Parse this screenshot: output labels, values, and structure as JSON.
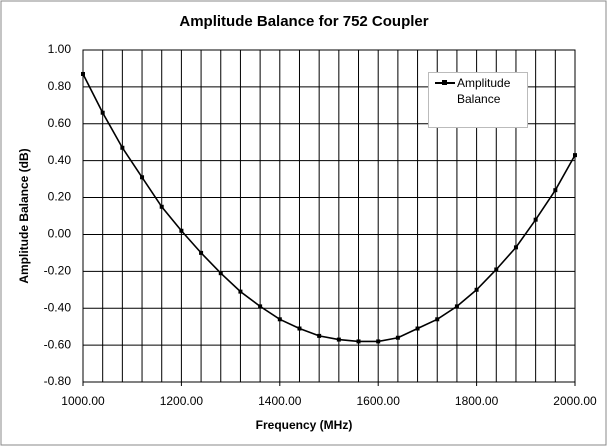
{
  "chart_data": {
    "type": "line",
    "title": "Amplitude Balance for 752 Coupler",
    "xlabel": "Frequency (MHz)",
    "ylabel": "Amplitude Balance (dB)",
    "x": [
      1000,
      1040,
      1080,
      1120,
      1160,
      1200,
      1240,
      1280,
      1320,
      1360,
      1400,
      1440,
      1480,
      1520,
      1560,
      1600,
      1640,
      1680,
      1720,
      1760,
      1800,
      1840,
      1880,
      1920,
      1960,
      2000
    ],
    "series": [
      {
        "name": "Amplitude Balance",
        "color": "#000000",
        "values": [
          0.87,
          0.66,
          0.47,
          0.31,
          0.15,
          0.02,
          -0.1,
          -0.21,
          -0.31,
          -0.39,
          -0.46,
          -0.51,
          -0.55,
          -0.57,
          -0.58,
          -0.58,
          -0.56,
          -0.51,
          -0.46,
          -0.39,
          -0.3,
          -0.19,
          -0.07,
          0.08,
          0.24,
          0.43
        ]
      }
    ],
    "xlim": [
      1000,
      2000
    ],
    "xticks": [
      {
        "value": 1000,
        "label": "1000.00"
      },
      {
        "value": 1200,
        "label": "1200.00"
      },
      {
        "value": 1400,
        "label": "1400.00"
      },
      {
        "value": 1600,
        "label": "1600.00"
      },
      {
        "value": 1800,
        "label": "1800.00"
      },
      {
        "value": 2000,
        "label": "2000.00"
      }
    ],
    "xminorticks": [
      1000,
      1040,
      1080,
      1120,
      1160,
      1200,
      1240,
      1280,
      1320,
      1360,
      1400,
      1440,
      1480,
      1520,
      1560,
      1600,
      1640,
      1680,
      1720,
      1760,
      1800,
      1840,
      1880,
      1920,
      1960,
      2000
    ],
    "ylim": [
      -0.8,
      1.0
    ],
    "yticks": [
      {
        "value": -0.8,
        "label": "-0.80"
      },
      {
        "value": -0.6,
        "label": "-0.60"
      },
      {
        "value": -0.4,
        "label": "-0.40"
      },
      {
        "value": -0.2,
        "label": "-0.20"
      },
      {
        "value": 0,
        "label": "0.00"
      },
      {
        "value": 0.2,
        "label": "0.20"
      },
      {
        "value": 0.4,
        "label": "0.40"
      },
      {
        "value": 0.6,
        "label": "0.60"
      },
      {
        "value": 0.8,
        "label": "0.80"
      },
      {
        "value": 1.0,
        "label": "1.00"
      }
    ],
    "grid": true,
    "legend": "upper-right"
  }
}
